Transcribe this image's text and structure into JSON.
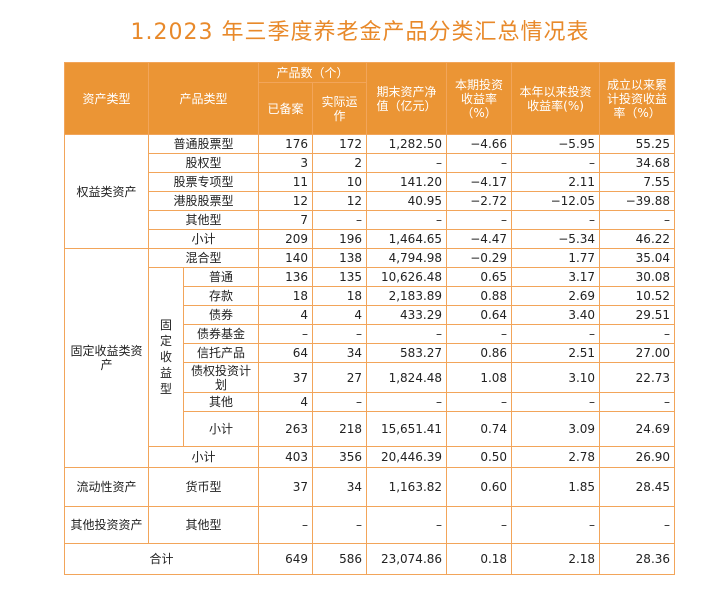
{
  "title": "1.2023 年三季度养老金产品分类汇总情况表",
  "colors": {
    "accent": "#e8892a",
    "header_bg": "#eb9535",
    "border": "#f2a55a"
  },
  "headers": {
    "asset_type": "资产类型",
    "product_type": "产品类型",
    "count_group": "产品数（个）",
    "filed": "已备案",
    "operating": "实际运作",
    "nav": "期末资产净值（亿元）",
    "period_return": "本期投资收益率（%）",
    "ytd_return": "本年以来投资收益率(%)",
    "cumulative_return": "成立以来累计投资收益率（%）"
  },
  "groups": {
    "equity": "权益类资产",
    "fixed": "固定收益类资产",
    "fixed_sub": "固定收益型",
    "liquidity": "流动性资产",
    "other": "其他投资资产"
  },
  "rows": [
    {
      "type": "普通股票型",
      "v": [
        "176",
        "172",
        "1,282.50",
        "−4.66",
        "−5.95",
        "55.25"
      ]
    },
    {
      "type": "股权型",
      "v": [
        "3",
        "2",
        "–",
        "–",
        "–",
        "34.68"
      ]
    },
    {
      "type": "股票专项型",
      "v": [
        "11",
        "10",
        "141.20",
        "−4.17",
        "2.11",
        "7.55"
      ]
    },
    {
      "type": "港股股票型",
      "v": [
        "12",
        "12",
        "40.95",
        "−2.72",
        "−12.05",
        "−39.88"
      ]
    },
    {
      "type": "其他型",
      "v": [
        "7",
        "–",
        "–",
        "–",
        "–",
        "–"
      ]
    },
    {
      "type": "小计",
      "v": [
        "209",
        "196",
        "1,464.65",
        "−4.47",
        "−5.34",
        "46.22"
      ]
    },
    {
      "type": "混合型",
      "v": [
        "140",
        "138",
        "4,794.98",
        "−0.29",
        "1.77",
        "35.04"
      ]
    },
    {
      "type": "普通",
      "v": [
        "136",
        "135",
        "10,626.48",
        "0.65",
        "3.17",
        "30.08"
      ]
    },
    {
      "type": "存款",
      "v": [
        "18",
        "18",
        "2,183.89",
        "0.88",
        "2.69",
        "10.52"
      ]
    },
    {
      "type": "债券",
      "v": [
        "4",
        "4",
        "433.29",
        "0.64",
        "3.40",
        "29.51"
      ]
    },
    {
      "type": "债券基金",
      "v": [
        "–",
        "–",
        "–",
        "–",
        "–",
        "–"
      ]
    },
    {
      "type": "信托产品",
      "v": [
        "64",
        "34",
        "583.27",
        "0.86",
        "2.51",
        "27.00"
      ]
    },
    {
      "type": "债权投资计划",
      "v": [
        "37",
        "27",
        "1,824.48",
        "1.08",
        "3.10",
        "22.73"
      ]
    },
    {
      "type": "其他",
      "v": [
        "4",
        "–",
        "–",
        "–",
        "–",
        "–"
      ]
    },
    {
      "type": "小计",
      "v": [
        "263",
        "218",
        "15,651.41",
        "0.74",
        "3.09",
        "24.69"
      ]
    },
    {
      "type": "小计",
      "v": [
        "403",
        "356",
        "20,446.39",
        "0.50",
        "2.78",
        "26.90"
      ]
    },
    {
      "type": "货币型",
      "v": [
        "37",
        "34",
        "1,163.82",
        "0.60",
        "1.85",
        "28.45"
      ]
    },
    {
      "type": "其他型",
      "v": [
        "–",
        "–",
        "–",
        "–",
        "–",
        "–"
      ]
    },
    {
      "type": "合计",
      "v": [
        "649",
        "586",
        "23,074.86",
        "0.18",
        "2.18",
        "28.36"
      ]
    }
  ]
}
